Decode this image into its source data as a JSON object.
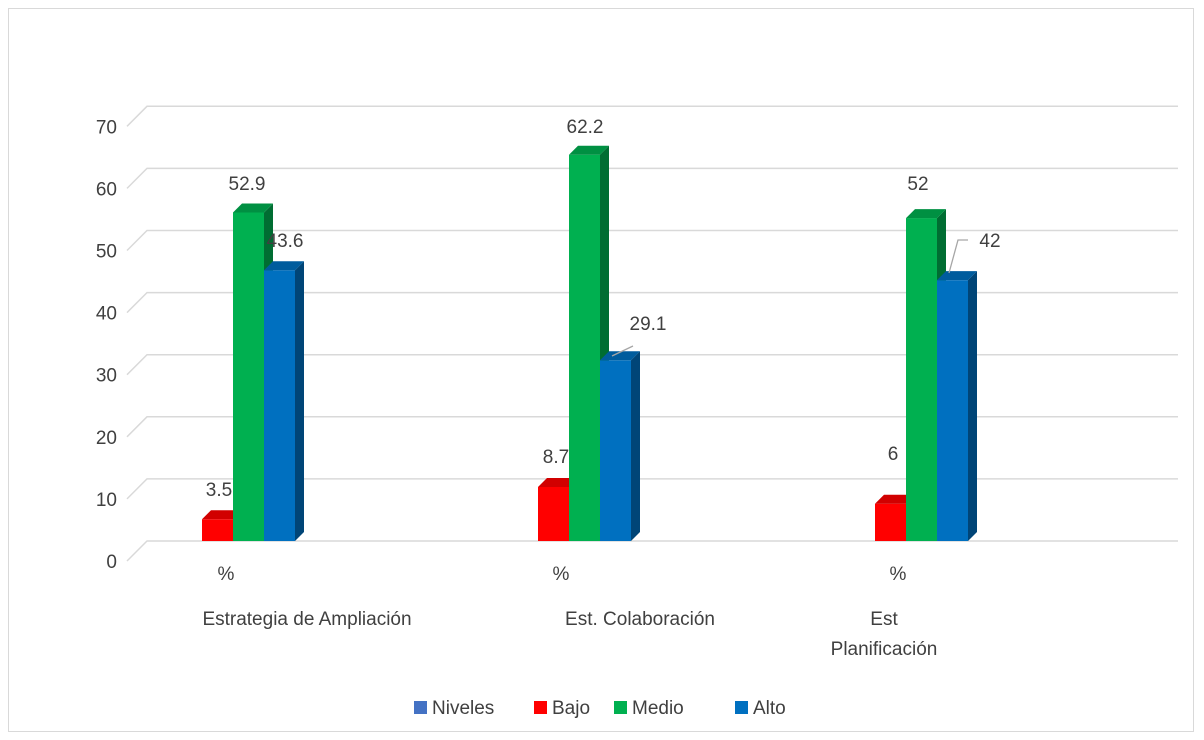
{
  "chart_data": {
    "type": "bar",
    "categories": [
      {
        "unit": "%",
        "label_lines": [
          "Estrategia de Ampliación"
        ]
      },
      {
        "unit": "%",
        "label_lines": [
          "Est. Colaboración"
        ]
      },
      {
        "unit": "%",
        "label_lines": [
          "Est",
          "Planificación"
        ]
      }
    ],
    "series": [
      {
        "name": "Niveles",
        "color": "#4472c4",
        "values": [
          null,
          null,
          null
        ]
      },
      {
        "name": "Bajo",
        "color": "#ff0000",
        "values": [
          3.5,
          8.7,
          6
        ]
      },
      {
        "name": "Medio",
        "color": "#00b050",
        "values": [
          52.9,
          62.2,
          52
        ]
      },
      {
        "name": "Alto",
        "color": "#0070c0",
        "values": [
          43.6,
          29.1,
          42
        ]
      }
    ],
    "ylim": [
      0,
      70
    ],
    "yticks": [
      0,
      10,
      20,
      30,
      40,
      50,
      60,
      70
    ],
    "grid": true,
    "legend_position": "bottom",
    "style": "3d-column"
  }
}
